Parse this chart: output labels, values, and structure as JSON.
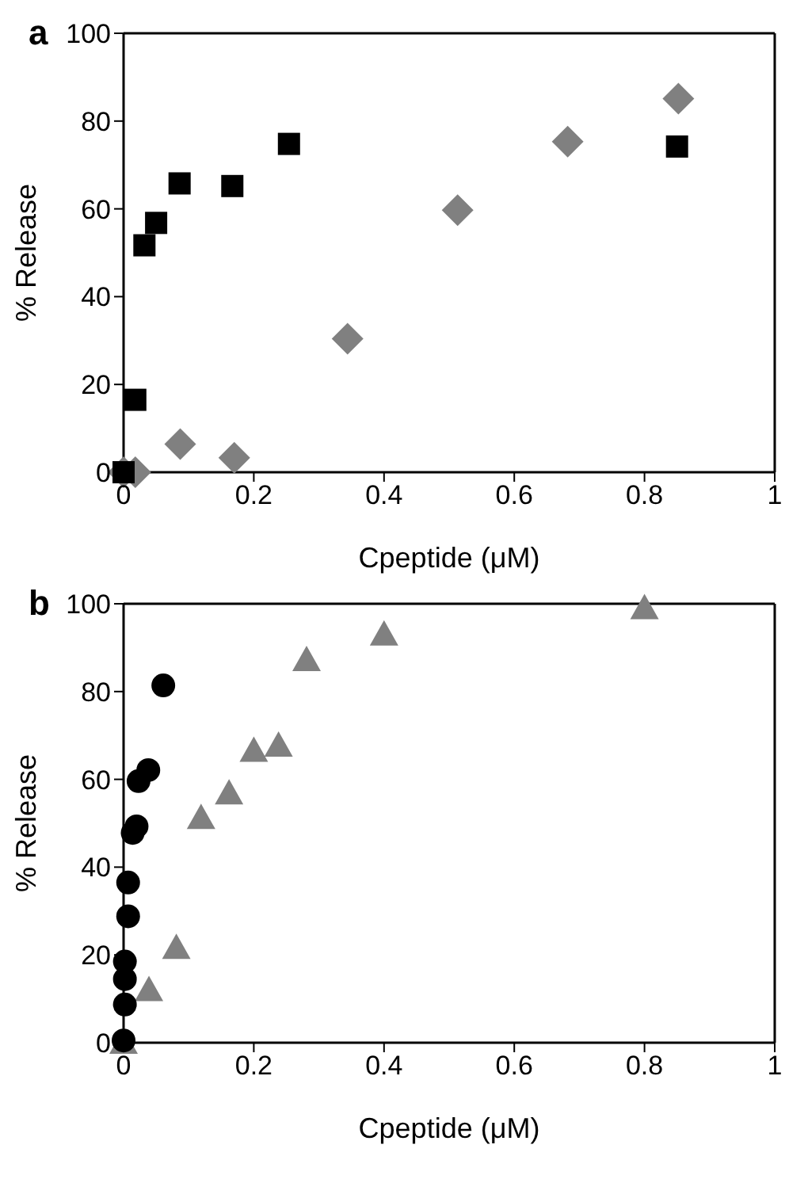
{
  "chart_data": [
    {
      "type": "scatter",
      "title": "a",
      "xlabel": "Cpeptide (μM)",
      "ylabel": "% Release",
      "xlim": [
        0,
        1
      ],
      "ylim": [
        0,
        100
      ],
      "xticks": [
        0,
        0.2,
        0.4,
        0.6,
        0.8,
        1
      ],
      "yticks": [
        0,
        20,
        40,
        60,
        80,
        100
      ],
      "series": [
        {
          "color": "#808080",
          "marker": "diamond",
          "x": [
            0,
            0.018,
            0.087,
            0.17,
            0.344,
            0.513,
            0.682,
            0.852
          ],
          "values": [
            0,
            0,
            6.4,
            3.3,
            30.4,
            59.7,
            75.3,
            85.1
          ]
        },
        {
          "color": "#000000",
          "marker": "square",
          "x": [
            0,
            0.018,
            0.032,
            0.05,
            0.086,
            0.167,
            0.254,
            0.85
          ],
          "values": [
            0,
            16.5,
            51.7,
            56.8,
            65.8,
            65.2,
            74.8,
            74.2
          ]
        }
      ]
    },
    {
      "type": "scatter",
      "title": "b",
      "xlabel": "Cpeptide (μM)",
      "ylabel": "% Release",
      "xlim": [
        0,
        1
      ],
      "ylim": [
        0,
        100
      ],
      "xticks": [
        0,
        0.2,
        0.4,
        0.6,
        0.8,
        1
      ],
      "yticks": [
        0,
        20,
        40,
        60,
        80,
        100
      ],
      "series": [
        {
          "color": "#808080",
          "marker": "triangle",
          "x": [
            0,
            0.039,
            0.081,
            0.119,
            0.162,
            0.2,
            0.238,
            0.281,
            0.4,
            0.8
          ],
          "values": [
            0,
            12,
            21.6,
            51.2,
            56.8,
            66.5,
            67.7,
            87.2,
            93,
            99
          ]
        },
        {
          "color": "#000000",
          "marker": "circle",
          "x": [
            0,
            0.002,
            0.002,
            0.002,
            0.007,
            0.007,
            0.014,
            0.02,
            0.023,
            0.038,
            0.061
          ],
          "values": [
            0.5,
            8.7,
            14.5,
            18.5,
            28.8,
            36.5,
            47.8,
            49.3,
            59.6,
            62.1,
            81.4
          ]
        }
      ]
    }
  ]
}
